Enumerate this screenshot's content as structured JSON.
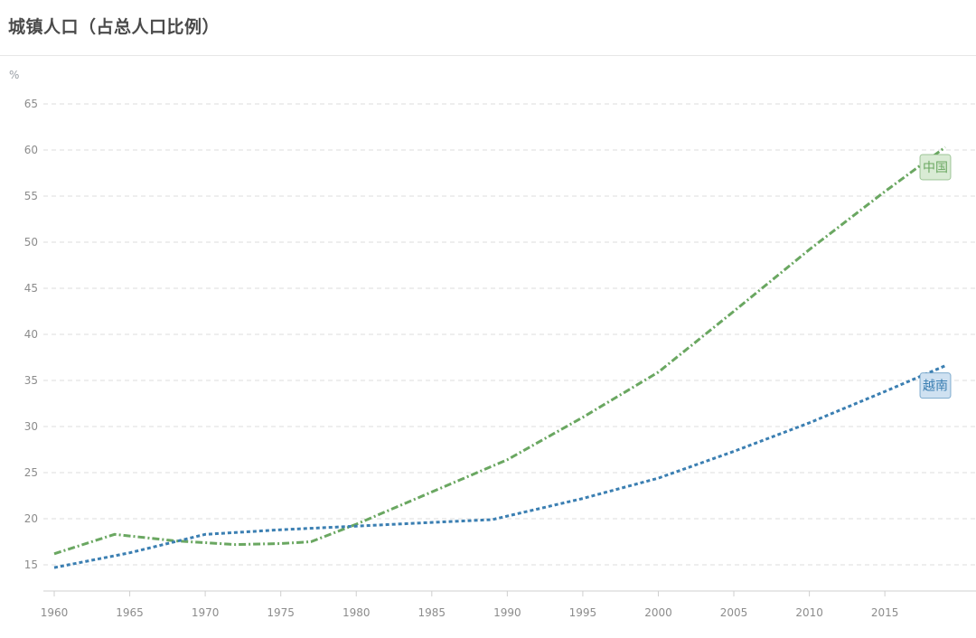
{
  "header": {
    "title": "城镇人口（占总人口比例）"
  },
  "chart_data": {
    "type": "line",
    "title": "城镇人口（占总人口比例）",
    "ylabel": "%",
    "xlim": [
      1960,
      2019
    ],
    "ylim": [
      15,
      65
    ],
    "x_ticks": [
      1960,
      1965,
      1970,
      1975,
      1980,
      1985,
      1990,
      1995,
      2000,
      2005,
      2010,
      2015
    ],
    "y_ticks": [
      15,
      20,
      25,
      30,
      35,
      40,
      45,
      50,
      55,
      60,
      65
    ],
    "grid": true,
    "series": [
      {
        "name": "中国",
        "color": "#6aa761",
        "x": [
          1960,
          1964,
          1968,
          1972,
          1975,
          1977,
          1980,
          1985,
          1990,
          1995,
          2000,
          2005,
          2010,
          2015,
          2019
        ],
        "values": [
          16.2,
          18.3,
          17.6,
          17.2,
          17.3,
          17.5,
          19.4,
          22.9,
          26.4,
          31.0,
          35.9,
          42.5,
          49.2,
          55.5,
          60.3
        ]
      },
      {
        "name": "越南",
        "color": "#3b7fb2",
        "x": [
          1960,
          1965,
          1970,
          1975,
          1980,
          1985,
          1989,
          1995,
          2000,
          2005,
          2010,
          2015,
          2019
        ],
        "values": [
          14.7,
          16.3,
          18.3,
          18.8,
          19.2,
          19.6,
          19.9,
          22.2,
          24.4,
          27.3,
          30.4,
          33.8,
          36.6
        ]
      }
    ]
  }
}
